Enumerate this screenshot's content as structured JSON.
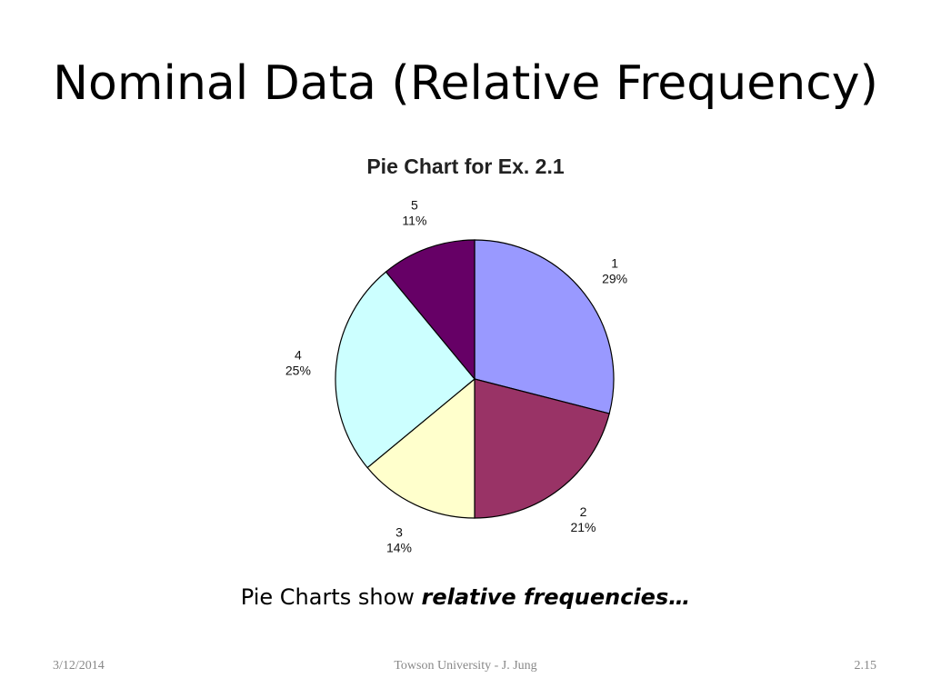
{
  "slide": {
    "title": "Nominal Data (Relative Frequency)",
    "caption_plain": "Pie Charts show ",
    "caption_emphasis": "relative frequencies…"
  },
  "footer": {
    "date": "3/12/2014",
    "center": "Towson University - J. Jung",
    "page": "2.15"
  },
  "chart_data": {
    "type": "pie",
    "title": "Pie Chart for Ex. 2.1",
    "slices": [
      {
        "label": "1",
        "value": 29,
        "value_label": "29%",
        "color": "#9999ff"
      },
      {
        "label": "2",
        "value": 21,
        "value_label": "21%",
        "color": "#993366"
      },
      {
        "label": "3",
        "value": 14,
        "value_label": "14%",
        "color": "#ffffcc"
      },
      {
        "label": "4",
        "value": 25,
        "value_label": "25%",
        "color": "#ccffff"
      },
      {
        "label": "5",
        "value": 11,
        "value_label": "11%",
        "color": "#660066"
      }
    ]
  }
}
